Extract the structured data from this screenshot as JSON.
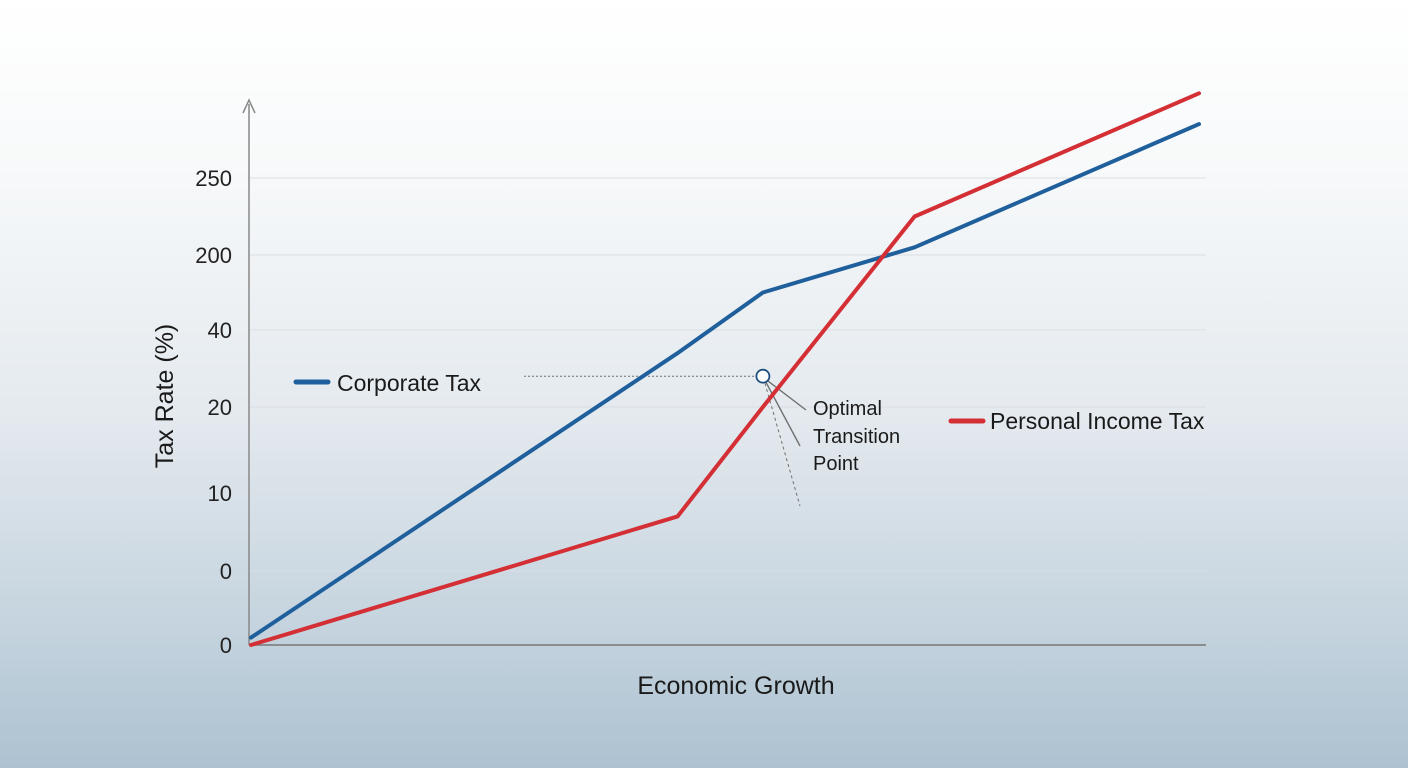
{
  "chart_data": {
    "type": "line",
    "xlabel": "Economic Growth",
    "ylabel": "Tax Rate (%)",
    "y_tick_labels": [
      "0",
      "0",
      "10",
      "20",
      "40",
      "200",
      "250"
    ],
    "grid": true,
    "x": [
      0,
      45,
      54,
      70,
      100
    ],
    "series": [
      {
        "name": "Corporate Tax",
        "color": "#1f5f9b",
        "y_levels": [
          0.1,
          3.7,
          4.5,
          5.1,
          6.7
        ]
      },
      {
        "name": "Personal Income Tax",
        "color": "#d32f35",
        "y_levels": [
          0.0,
          1.7,
          3.0,
          5.5,
          7.1
        ]
      }
    ],
    "annotations": [
      {
        "text": [
          "Optimal",
          "Transition",
          "Point"
        ],
        "x": 54.0,
        "y_level": 3.4
      }
    ],
    "legend": [
      "left-middle",
      "right-middle"
    ]
  }
}
